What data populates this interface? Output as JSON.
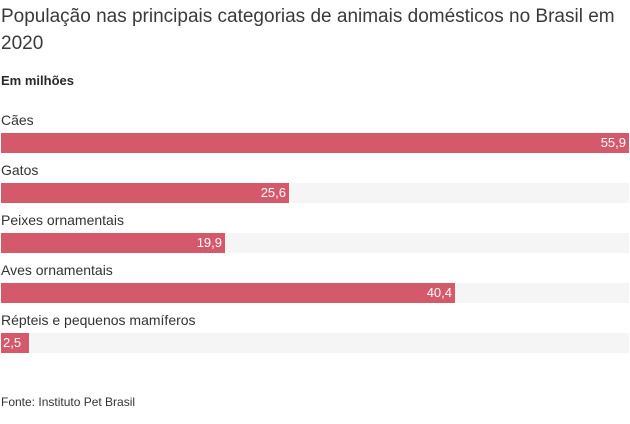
{
  "chart_data": {
    "type": "bar",
    "orientation": "horizontal",
    "title": "População nas principais categorias de animais domésticos no Brasil em 2020",
    "subtitle": "Em milhões",
    "categories": [
      "Cães",
      "Gatos",
      "Peixes ornamentais",
      "Aves ornamentais",
      "Répteis e pequenos mamíferos"
    ],
    "values": [
      55.9,
      25.6,
      19.9,
      40.4,
      2.5
    ],
    "value_labels": [
      "55,9",
      "25,6",
      "19,9",
      "40,4",
      "2,5"
    ],
    "xlim": [
      0,
      55.9
    ],
    "xlabel": "",
    "ylabel": "",
    "grid": false,
    "legend": "none",
    "bar_color": "#d4596b",
    "track_color": "#f5f5f5",
    "source": "Fonte: Instituto Pet Brasil"
  }
}
